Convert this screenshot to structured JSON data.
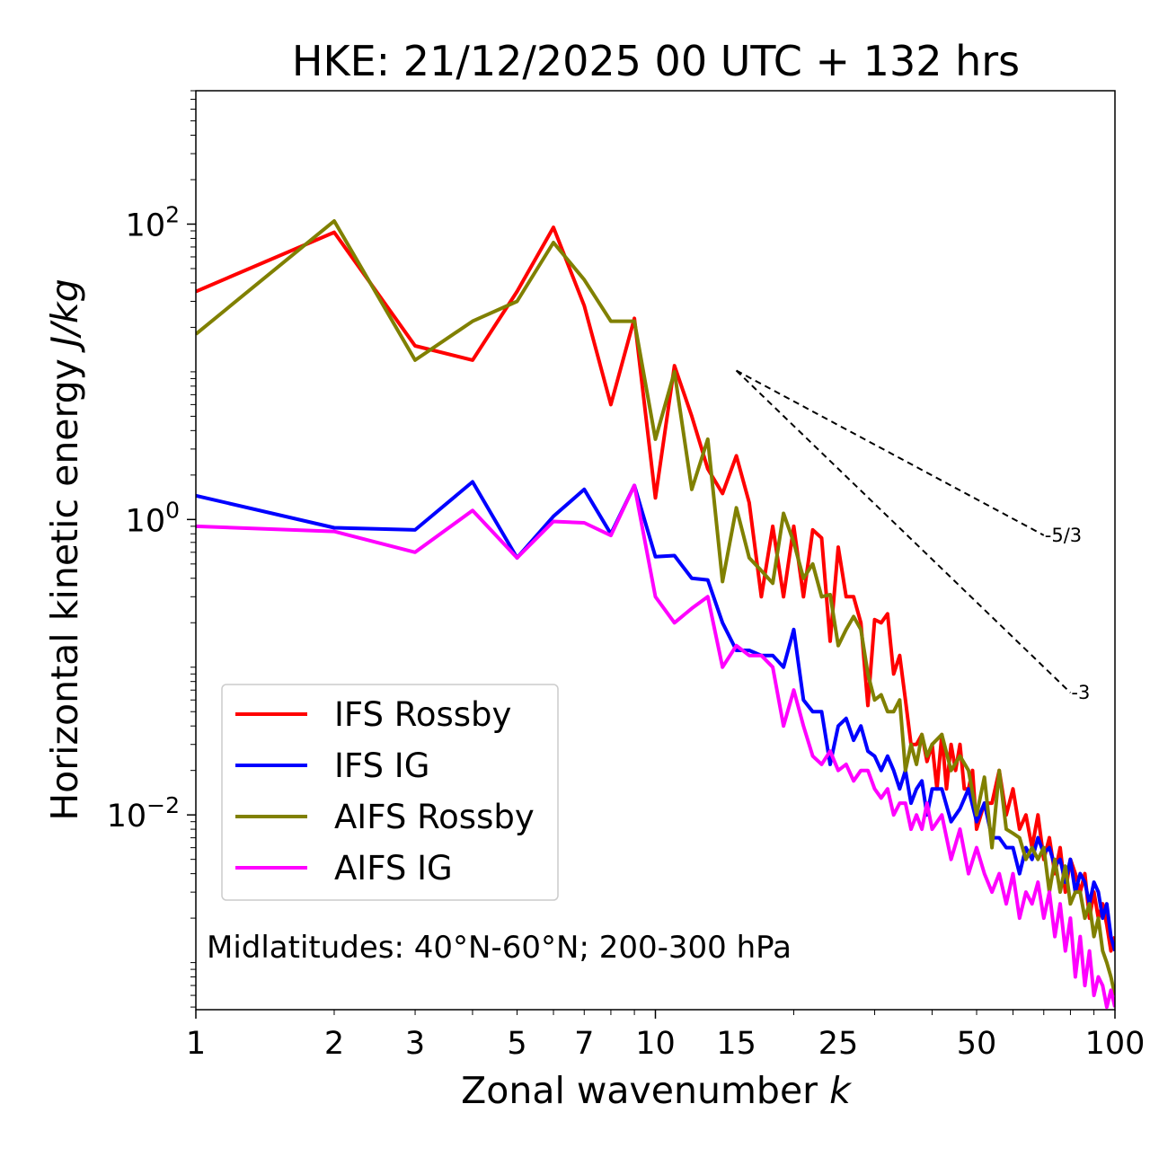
{
  "chart_data": {
    "type": "line",
    "title": "HKE: 21/12/2025 00 UTC + 132 hrs",
    "xlabel": "Zonal wavenumber",
    "xlabel_var": "k",
    "ylabel": "Horizontal kinetic energy",
    "ylabel_units": "J/kg",
    "xscale": "log",
    "yscale": "log",
    "xlim": [
      1,
      100
    ],
    "ylim": [
      0.00048,
      800
    ],
    "x_ticks": [
      1,
      2,
      3,
      5,
      7,
      10,
      15,
      25,
      50,
      100
    ],
    "x_tick_labels": [
      "1",
      "2",
      "3",
      "5",
      "7",
      "10",
      "15",
      "25",
      "50",
      "100"
    ],
    "y_ticks": [
      {
        "value": 100,
        "base": "10",
        "exp": "2"
      },
      {
        "value": 1,
        "base": "10",
        "exp": "0"
      },
      {
        "value": 0.01,
        "base": "10",
        "exp": "−2"
      }
    ],
    "annotation": "Midlatitudes: 40°N-60°N; 200-300 hPa",
    "legend_position": "lower-left",
    "reference_lines": [
      {
        "label": "-5/3",
        "slope": -1.6667,
        "x0": 15,
        "y0": 10.2,
        "x1": 70
      },
      {
        "label": "-3",
        "slope": -3,
        "x0": 15,
        "y0": 10.2,
        "x1": 80
      }
    ],
    "series": [
      {
        "name": "IFS Rossby",
        "color": "#ff0000",
        "x": [
          1,
          2,
          3,
          4,
          5,
          6,
          7,
          8,
          9,
          10,
          11,
          12,
          13,
          14,
          15,
          16,
          17,
          18,
          19,
          20,
          21,
          22,
          23,
          24,
          25,
          26,
          27,
          28,
          29,
          30,
          31,
          32,
          33,
          34,
          35,
          36,
          37,
          38,
          39,
          40,
          41,
          42,
          43,
          44,
          45,
          46,
          47,
          48,
          49,
          50,
          52,
          54,
          56,
          58,
          60,
          62,
          64,
          66,
          68,
          70,
          72,
          74,
          76,
          78,
          80,
          82,
          84,
          86,
          88,
          90,
          92,
          94,
          96,
          98,
          100
        ],
        "values": [
          35,
          88,
          15,
          12,
          35,
          95,
          28,
          6,
          23,
          1.4,
          11,
          5,
          2.2,
          1.5,
          2.7,
          1.3,
          0.3,
          0.9,
          0.3,
          0.9,
          0.3,
          0.85,
          0.75,
          0.15,
          0.65,
          0.3,
          0.3,
          0.2,
          0.055,
          0.21,
          0.2,
          0.23,
          0.09,
          0.12,
          0.06,
          0.03,
          0.03,
          0.035,
          0.023,
          0.03,
          0.015,
          0.035,
          0.015,
          0.03,
          0.02,
          0.03,
          0.015,
          0.015,
          0.02,
          0.008,
          0.012,
          0.012,
          0.02,
          0.01,
          0.015,
          0.008,
          0.01,
          0.006,
          0.01,
          0.005,
          0.007,
          0.004,
          0.006,
          0.003,
          0.005,
          0.004,
          0.003,
          0.004,
          0.002,
          0.003,
          0.002,
          0.0025,
          0.0018,
          0.0012,
          0.0015
        ]
      },
      {
        "name": "IFS IG",
        "color": "#0000ff",
        "x": [
          1,
          2,
          3,
          4,
          5,
          6,
          7,
          8,
          9,
          10,
          11,
          12,
          13,
          14,
          15,
          16,
          17,
          18,
          19,
          20,
          21,
          22,
          23,
          24,
          25,
          26,
          27,
          28,
          29,
          30,
          31,
          32,
          33,
          34,
          35,
          36,
          37,
          38,
          39,
          40,
          42,
          44,
          46,
          48,
          50,
          52,
          54,
          56,
          58,
          60,
          62,
          64,
          66,
          68,
          70,
          72,
          74,
          76,
          78,
          80,
          82,
          84,
          86,
          88,
          90,
          92,
          94,
          96,
          98,
          100
        ],
        "values": [
          1.45,
          0.88,
          0.85,
          1.8,
          0.55,
          1.05,
          1.6,
          0.8,
          1.7,
          0.56,
          0.57,
          0.4,
          0.39,
          0.2,
          0.13,
          0.13,
          0.12,
          0.12,
          0.1,
          0.18,
          0.06,
          0.05,
          0.05,
          0.022,
          0.04,
          0.045,
          0.032,
          0.04,
          0.027,
          0.025,
          0.02,
          0.025,
          0.02,
          0.015,
          0.02,
          0.012,
          0.015,
          0.017,
          0.01,
          0.015,
          0.015,
          0.009,
          0.011,
          0.015,
          0.009,
          0.012,
          0.007,
          0.007,
          0.006,
          0.006,
          0.004,
          0.006,
          0.005,
          0.007,
          0.0055,
          0.006,
          0.0045,
          0.005,
          0.0035,
          0.005,
          0.003,
          0.004,
          0.0035,
          0.0025,
          0.0035,
          0.003,
          0.002,
          0.0025,
          0.0015,
          0.0012
        ]
      },
      {
        "name": "AIFS Rossby",
        "color": "#808000",
        "x": [
          1,
          2,
          3,
          4,
          5,
          6,
          7,
          8,
          9,
          10,
          11,
          12,
          13,
          14,
          15,
          16,
          17,
          18,
          19,
          20,
          21,
          22,
          23,
          24,
          25,
          26,
          27,
          28,
          29,
          30,
          31,
          32,
          33,
          34,
          35,
          36,
          37,
          38,
          39,
          40,
          42,
          44,
          46,
          48,
          50,
          52,
          54,
          56,
          58,
          60,
          62,
          64,
          66,
          68,
          70,
          72,
          74,
          76,
          78,
          80,
          82,
          84,
          86,
          88,
          90,
          92,
          94,
          96,
          98,
          100
        ],
        "values": [
          18,
          105,
          12,
          22,
          30,
          75,
          42,
          22,
          22,
          3.5,
          10,
          1.6,
          3.5,
          0.38,
          1.2,
          0.55,
          0.45,
          0.37,
          1.1,
          0.7,
          0.4,
          0.5,
          0.3,
          0.31,
          0.14,
          0.18,
          0.22,
          0.18,
          0.09,
          0.06,
          0.065,
          0.05,
          0.05,
          0.06,
          0.02,
          0.03,
          0.022,
          0.035,
          0.025,
          0.03,
          0.035,
          0.02,
          0.025,
          0.02,
          0.01,
          0.018,
          0.006,
          0.02,
          0.008,
          0.0075,
          0.007,
          0.005,
          0.006,
          0.005,
          0.006,
          0.003,
          0.005,
          0.003,
          0.0045,
          0.0025,
          0.003,
          0.003,
          0.002,
          0.0025,
          0.0015,
          0.002,
          0.0012,
          0.001,
          0.0008,
          0.0006
        ]
      },
      {
        "name": "AIFS IG",
        "color": "#ff00ff",
        "x": [
          1,
          2,
          3,
          4,
          5,
          6,
          7,
          8,
          9,
          10,
          11,
          12,
          13,
          14,
          15,
          16,
          17,
          18,
          19,
          20,
          21,
          22,
          23,
          24,
          25,
          26,
          27,
          28,
          29,
          30,
          31,
          32,
          33,
          34,
          35,
          36,
          37,
          38,
          39,
          40,
          42,
          44,
          46,
          48,
          50,
          52,
          54,
          56,
          58,
          60,
          62,
          64,
          66,
          68,
          70,
          72,
          74,
          76,
          78,
          80,
          82,
          84,
          86,
          88,
          90,
          92,
          94,
          96,
          98,
          100
        ],
        "values": [
          0.9,
          0.83,
          0.6,
          1.15,
          0.55,
          0.97,
          0.95,
          0.78,
          1.7,
          0.3,
          0.2,
          0.25,
          0.3,
          0.1,
          0.14,
          0.12,
          0.12,
          0.1,
          0.04,
          0.07,
          0.04,
          0.025,
          0.022,
          0.027,
          0.02,
          0.022,
          0.017,
          0.02,
          0.02,
          0.015,
          0.013,
          0.015,
          0.01,
          0.012,
          0.012,
          0.008,
          0.01,
          0.008,
          0.012,
          0.008,
          0.01,
          0.005,
          0.008,
          0.004,
          0.006,
          0.004,
          0.003,
          0.004,
          0.0025,
          0.004,
          0.002,
          0.003,
          0.0025,
          0.0035,
          0.002,
          0.003,
          0.0015,
          0.0025,
          0.0012,
          0.002,
          0.0008,
          0.0015,
          0.0007,
          0.0012,
          0.0006,
          0.0008,
          0.0007,
          0.0005,
          0.00065,
          0.0005
        ]
      }
    ]
  }
}
